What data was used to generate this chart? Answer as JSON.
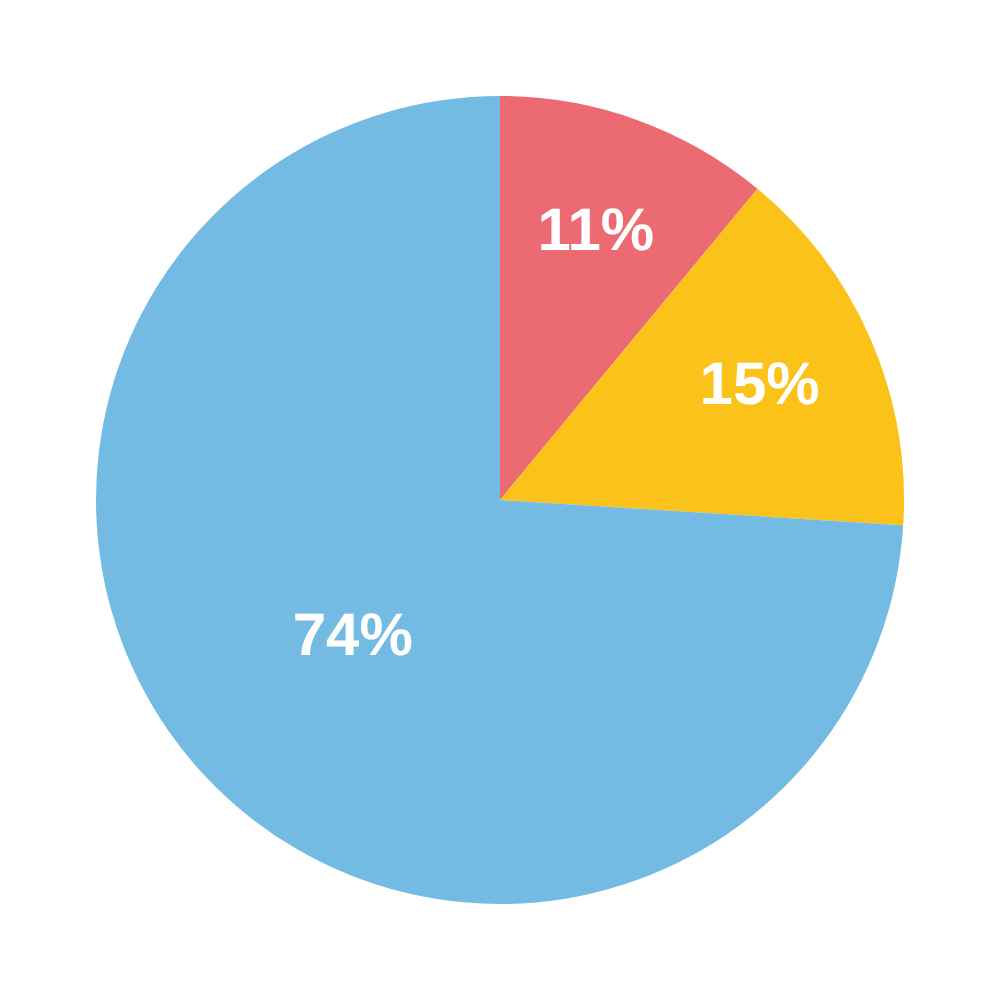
{
  "chart_data": {
    "type": "pie",
    "categories": [
      null,
      null,
      null
    ],
    "values": [
      11,
      15,
      74
    ],
    "colors": [
      "#ec6b73",
      "#fbc21a",
      "#74bbe4"
    ],
    "value_labels": [
      "11%",
      "15%",
      "74%"
    ],
    "legend": false
  }
}
